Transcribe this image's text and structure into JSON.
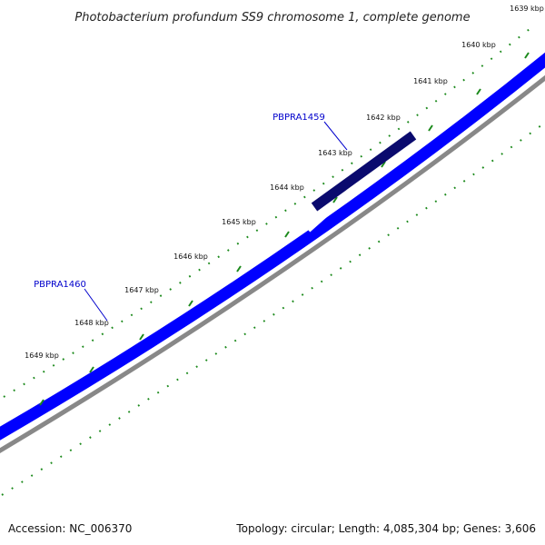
{
  "title": "Photobacterium profundum SS9 chromosome 1, complete genome",
  "ticks": [
    "1639 kbp",
    "1640 kbp",
    "1641 kbp",
    "1642 kbp",
    "1643 kbp",
    "1644 kbp",
    "1645 kbp",
    "1646 kbp",
    "1647 kbp",
    "1648 kbp",
    "1649 kbp"
  ],
  "genes": [
    {
      "name": "PBPRA1459",
      "color": "#0a0a6e"
    },
    {
      "name": "PBPRA1460",
      "color": "#1a1aee"
    }
  ],
  "colors": {
    "backbone": "#0000ff",
    "backbone_shadow": "#888888",
    "tick_marks": "#1c8a1c",
    "gene_label": "#0000cc"
  },
  "footer": {
    "accession": "Accession: NC_006370",
    "summary": "Topology: circular; Length: 4,085,304 bp; Genes: 3,606"
  }
}
